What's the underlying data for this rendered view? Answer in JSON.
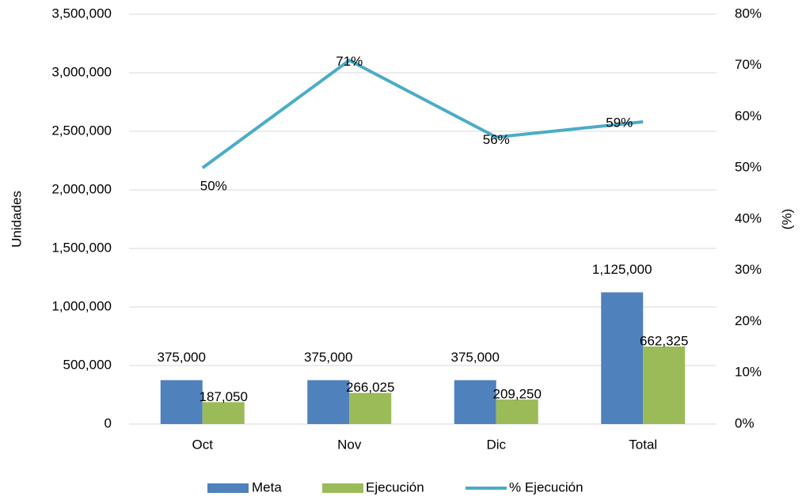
{
  "chart_data": {
    "type": "bar",
    "categories": [
      "Oct",
      "Nov",
      "Dic",
      "Total"
    ],
    "y_label": "Unidades",
    "y2_label": "(%)",
    "ylim": [
      0,
      3500000
    ],
    "yticks": [
      0,
      {
        "value": 500000,
        "label": "500,000"
      },
      {
        "value": 1000000,
        "label": "1,000,000"
      },
      {
        "value": 1500000,
        "label": "1,500,000"
      },
      {
        "value": 2000000,
        "label": "2,000,000"
      },
      {
        "value": 2500000,
        "label": "2,500,000"
      },
      {
        "value": 3000000,
        "label": "3,000,000"
      },
      {
        "value": 3500000,
        "label": "3,500,000"
      }
    ],
    "y2lim": [
      0,
      80
    ],
    "y2ticks": [
      {
        "value": 0,
        "label": "0%"
      },
      {
        "value": 10,
        "label": "10%"
      },
      {
        "value": 20,
        "label": "20%"
      },
      {
        "value": 30,
        "label": "30%"
      },
      {
        "value": 40,
        "label": "40%"
      },
      {
        "value": 50,
        "label": "50%"
      },
      {
        "value": 60,
        "label": "60%"
      },
      {
        "value": 70,
        "label": "70%"
      },
      {
        "value": 80,
        "label": "80%"
      }
    ],
    "grid": true,
    "legend": "bottom",
    "series": [
      {
        "name": "Meta",
        "type": "bar",
        "color": "#4f81bd",
        "values": [
          375000,
          375000,
          375000,
          1125000
        ],
        "value_labels": [
          "375,000",
          "375,000",
          "375,000",
          "1,125,000"
        ]
      },
      {
        "name": "Ejecución",
        "type": "bar",
        "color": "#9bbb59",
        "values": [
          187050,
          266025,
          209250,
          662325
        ],
        "value_labels": [
          "187,050",
          "266,025",
          "209,250",
          "662,325"
        ]
      },
      {
        "name": "% Ejecución",
        "type": "line",
        "axis": "y2",
        "color": "#4bacc6",
        "values": [
          50,
          71,
          56,
          59
        ],
        "value_labels": [
          "50%",
          "71%",
          "56%",
          "59%"
        ]
      }
    ]
  }
}
